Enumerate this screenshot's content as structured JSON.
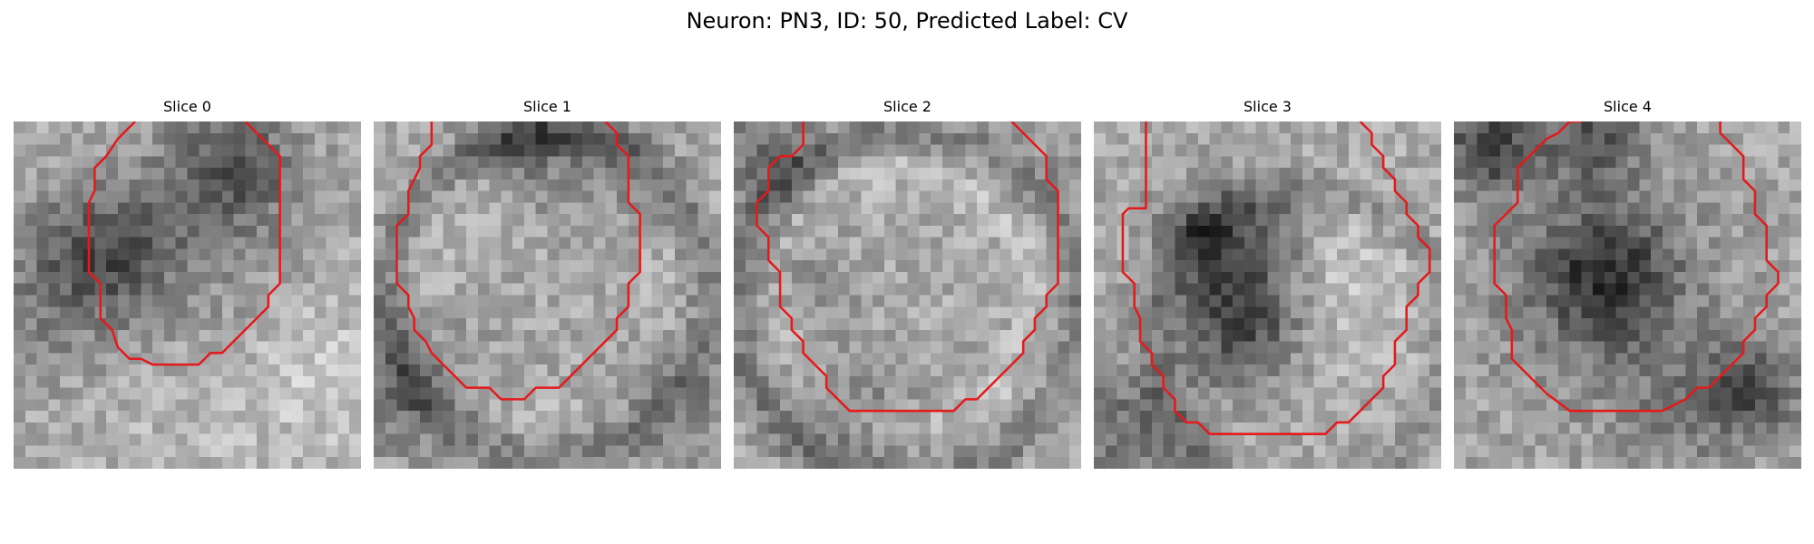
{
  "figure": {
    "title": "Neuron: PN3, ID: 50, Predicted Label: CV",
    "contour_color": "#e41a1c"
  },
  "panels": [
    {
      "label": "Slice 0",
      "contour": [
        [
          10.5,
          0
        ],
        [
          9,
          1.5
        ],
        [
          8,
          3
        ],
        [
          7,
          4
        ],
        [
          7,
          6
        ],
        [
          6.5,
          7
        ],
        [
          6.5,
          13
        ],
        [
          7.5,
          14
        ],
        [
          7.5,
          17
        ],
        [
          8.5,
          18
        ],
        [
          9,
          19.5
        ],
        [
          10,
          20.5
        ],
        [
          11,
          20.5
        ],
        [
          12,
          21
        ],
        [
          16,
          21
        ],
        [
          17,
          20
        ],
        [
          18,
          20
        ],
        [
          19,
          19
        ],
        [
          21,
          17
        ],
        [
          22,
          16
        ],
        [
          22,
          15
        ],
        [
          23,
          14
        ],
        [
          23,
          3
        ],
        [
          22,
          2
        ],
        [
          21,
          1
        ],
        [
          20,
          0
        ]
      ]
    },
    {
      "label": "Slice 1",
      "contour": [
        [
          5,
          0
        ],
        [
          5,
          2
        ],
        [
          4,
          3
        ],
        [
          4,
          4
        ],
        [
          3.5,
          5
        ],
        [
          3,
          6
        ],
        [
          3,
          8
        ],
        [
          2,
          9
        ],
        [
          2,
          14
        ],
        [
          3,
          15
        ],
        [
          3,
          16
        ],
        [
          3.5,
          17
        ],
        [
          3.5,
          18
        ],
        [
          4.5,
          19
        ],
        [
          5,
          20
        ],
        [
          6,
          21
        ],
        [
          7,
          22
        ],
        [
          8,
          23
        ],
        [
          9,
          23
        ],
        [
          10,
          23
        ],
        [
          11,
          24
        ],
        [
          13,
          24
        ],
        [
          14,
          23
        ],
        [
          16,
          23
        ],
        [
          17,
          22
        ],
        [
          18,
          21
        ],
        [
          19,
          20
        ],
        [
          20,
          19
        ],
        [
          21,
          18
        ],
        [
          21,
          17
        ],
        [
          22,
          16
        ],
        [
          22,
          14
        ],
        [
          23,
          13
        ],
        [
          23,
          8
        ],
        [
          22,
          7
        ],
        [
          22,
          3
        ],
        [
          21,
          2
        ],
        [
          21,
          1
        ],
        [
          20,
          0
        ]
      ]
    },
    {
      "label": "Slice 2",
      "contour": [
        [
          6,
          0
        ],
        [
          6,
          2
        ],
        [
          5,
          3
        ],
        [
          4,
          3
        ],
        [
          3,
          4
        ],
        [
          3,
          6
        ],
        [
          2,
          7
        ],
        [
          2,
          9
        ],
        [
          3,
          10
        ],
        [
          3,
          12
        ],
        [
          4,
          13
        ],
        [
          4,
          16
        ],
        [
          5,
          17
        ],
        [
          5,
          18
        ],
        [
          6,
          19
        ],
        [
          6,
          20
        ],
        [
          7,
          21
        ],
        [
          8,
          22
        ],
        [
          8,
          23
        ],
        [
          9,
          24
        ],
        [
          10,
          25
        ],
        [
          11,
          25
        ],
        [
          19,
          25
        ],
        [
          20,
          24
        ],
        [
          21,
          24
        ],
        [
          22,
          23
        ],
        [
          23,
          22
        ],
        [
          24,
          21
        ],
        [
          25,
          20
        ],
        [
          25,
          19
        ],
        [
          26,
          18
        ],
        [
          26,
          17
        ],
        [
          27,
          16
        ],
        [
          27,
          15
        ],
        [
          28,
          14
        ],
        [
          28,
          6
        ],
        [
          27,
          5
        ],
        [
          27,
          3
        ],
        [
          26,
          2
        ],
        [
          25,
          1
        ],
        [
          24,
          0
        ]
      ]
    },
    {
      "label": "Slice 3",
      "contour": [
        [
          4.5,
          0
        ],
        [
          4.5,
          7.5
        ],
        [
          3,
          7.5
        ],
        [
          2.5,
          8
        ],
        [
          2.5,
          13
        ],
        [
          3.5,
          14
        ],
        [
          3.5,
          16
        ],
        [
          4,
          17
        ],
        [
          4,
          19
        ],
        [
          5,
          20
        ],
        [
          5,
          21
        ],
        [
          6,
          22
        ],
        [
          6,
          23
        ],
        [
          7,
          24
        ],
        [
          7,
          25
        ],
        [
          8,
          26
        ],
        [
          9,
          26
        ],
        [
          10,
          27
        ],
        [
          20,
          27
        ],
        [
          21,
          26
        ],
        [
          22,
          26
        ],
        [
          23,
          25
        ],
        [
          24,
          24
        ],
        [
          25,
          23
        ],
        [
          25,
          22
        ],
        [
          26,
          21
        ],
        [
          26,
          19
        ],
        [
          27,
          18
        ],
        [
          27,
          16
        ],
        [
          28,
          15
        ],
        [
          28,
          14
        ],
        [
          29,
          13
        ],
        [
          29,
          11
        ],
        [
          28,
          10
        ],
        [
          28,
          9
        ],
        [
          27,
          8
        ],
        [
          27,
          7
        ],
        [
          26,
          6
        ],
        [
          26,
          5
        ],
        [
          25,
          4
        ],
        [
          25,
          3
        ],
        [
          24,
          2
        ],
        [
          24,
          1
        ],
        [
          23,
          0
        ]
      ]
    },
    {
      "label": "Slice 4",
      "contour": [
        [
          11,
          0
        ],
        [
          10,
          0
        ],
        [
          9,
          1
        ],
        [
          8,
          1.5
        ],
        [
          7,
          2.5
        ],
        [
          6,
          3.5
        ],
        [
          5.5,
          4
        ],
        [
          5.5,
          7
        ],
        [
          4.5,
          8
        ],
        [
          3.5,
          9
        ],
        [
          3.5,
          14
        ],
        [
          4.5,
          15
        ],
        [
          4.5,
          17
        ],
        [
          5,
          18
        ],
        [
          5,
          20.5
        ],
        [
          6,
          21.5
        ],
        [
          7,
          22.5
        ],
        [
          8,
          23.5
        ],
        [
          10,
          25
        ],
        [
          11,
          25
        ],
        [
          18,
          25
        ],
        [
          19,
          24.5
        ],
        [
          20,
          24
        ],
        [
          21,
          23
        ],
        [
          22,
          23
        ],
        [
          23,
          22
        ],
        [
          24,
          21
        ],
        [
          25,
          20
        ],
        [
          25,
          19
        ],
        [
          26,
          18
        ],
        [
          26,
          17
        ],
        [
          27,
          16
        ],
        [
          27,
          15
        ],
        [
          28,
          14
        ],
        [
          28,
          13
        ],
        [
          27,
          12
        ],
        [
          27,
          9
        ],
        [
          26,
          8
        ],
        [
          26,
          6
        ],
        [
          25,
          5
        ],
        [
          25,
          3
        ],
        [
          24,
          2
        ],
        [
          23,
          1
        ],
        [
          23,
          0
        ]
      ]
    }
  ]
}
